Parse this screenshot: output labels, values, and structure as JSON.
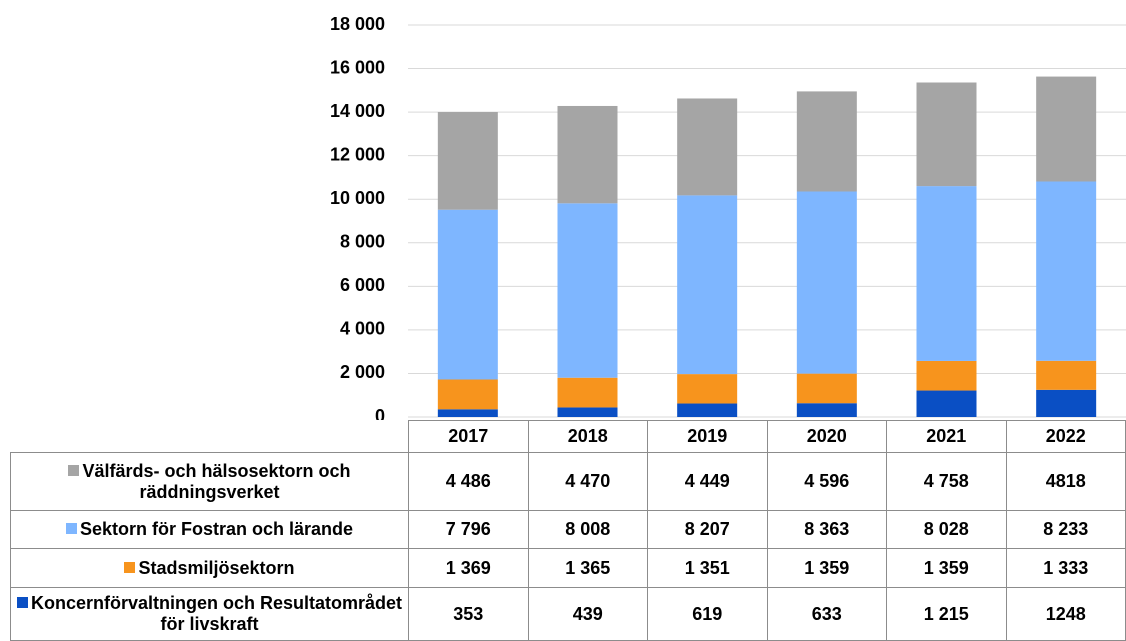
{
  "chart_data": {
    "type": "bar",
    "stacked": true,
    "categories": [
      "2017",
      "2018",
      "2019",
      "2020",
      "2021",
      "2022"
    ],
    "series": [
      {
        "name": "Koncernförvaltningen och Resultatområdet för livskraft",
        "color": "#0a4fc4",
        "values": [
          353,
          439,
          619,
          633,
          1215,
          1248
        ],
        "value_labels": [
          "353",
          "439",
          "619",
          "633",
          "1 215",
          "1248"
        ]
      },
      {
        "name": "Stadsmiljösektorn",
        "color": "#f7941d",
        "values": [
          1369,
          1365,
          1351,
          1359,
          1359,
          1333
        ],
        "value_labels": [
          "1 369",
          "1 365",
          "1 351",
          "1 359",
          "1 359",
          "1 333"
        ]
      },
      {
        "name": "Sektorn för Fostran och lärande",
        "color": "#7eb6ff",
        "values": [
          7796,
          8008,
          8207,
          8363,
          8028,
          8233
        ],
        "value_labels": [
          "7 796",
          "8 008",
          "8 207",
          "8 363",
          "8 028",
          "8 233"
        ]
      },
      {
        "name": "Välfärds- och hälsosektorn och räddningsverket",
        "color": "#a5a5a5",
        "values": [
          4486,
          4470,
          4449,
          4596,
          4758,
          4818
        ],
        "value_labels": [
          "4 486",
          "4 470",
          "4 449",
          "4 596",
          "4 758",
          "4818"
        ]
      }
    ],
    "ylim": [
      0,
      18000
    ],
    "yticks": [
      0,
      {
        "value": 2000,
        "label": "2 000"
      },
      {
        "value": 4000,
        "label": "4 000"
      },
      {
        "value": 6000,
        "label": "6 000"
      },
      {
        "value": 8000,
        "label": "8 000"
      },
      {
        "value": 10000,
        "label": "10 000"
      },
      {
        "value": 12000,
        "label": "12 000"
      },
      {
        "value": 14000,
        "label": "14 000"
      },
      {
        "value": 16000,
        "label": "16 000"
      },
      {
        "value": 18000,
        "label": "18 000"
      }
    ],
    "grid": true
  }
}
